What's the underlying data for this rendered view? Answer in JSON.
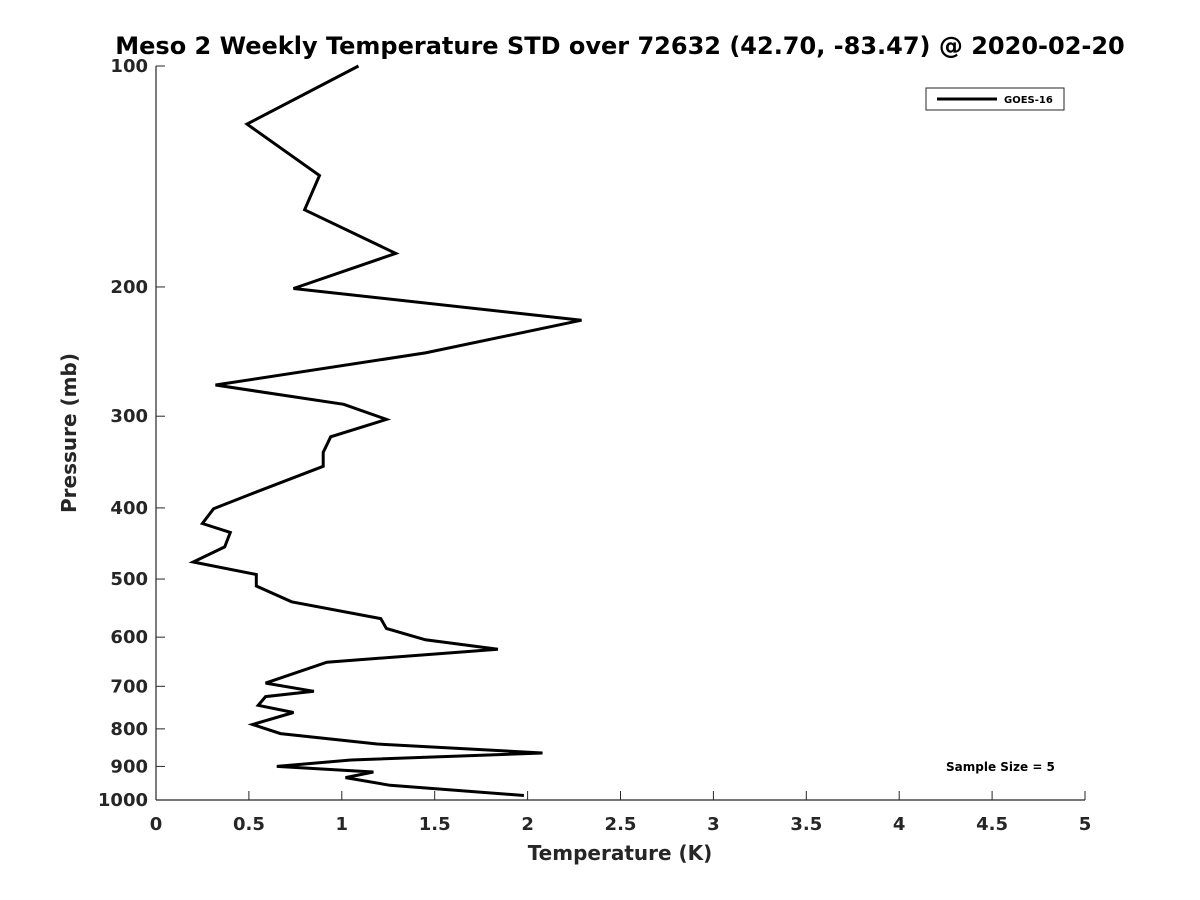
{
  "chart_data": {
    "type": "line",
    "title": "Meso 2 Weekly Temperature STD over 72632 (42.70, -83.47) @ 2020-02-20",
    "xlabel": "Temperature (K)",
    "ylabel": "Pressure (mb)",
    "xlim": [
      0,
      5
    ],
    "ylim": [
      100,
      1000
    ],
    "yscale": "log",
    "y_reversed": true,
    "grid": false,
    "legend_position": "top-right",
    "x_ticks": [
      {
        "value": 0,
        "label": "0"
      },
      {
        "value": 0.5,
        "label": "0.5"
      },
      {
        "value": 1,
        "label": "1"
      },
      {
        "value": 1.5,
        "label": "1.5"
      },
      {
        "value": 2,
        "label": "2"
      },
      {
        "value": 2.5,
        "label": "2.5"
      },
      {
        "value": 3,
        "label": "3"
      },
      {
        "value": 3.5,
        "label": "3.5"
      },
      {
        "value": 4,
        "label": "4"
      },
      {
        "value": 4.5,
        "label": "4.5"
      },
      {
        "value": 5,
        "label": "5"
      }
    ],
    "y_ticks": [
      {
        "value": 100,
        "label": "100"
      },
      {
        "value": 200,
        "label": "200"
      },
      {
        "value": 300,
        "label": "300"
      },
      {
        "value": 400,
        "label": "400"
      },
      {
        "value": 500,
        "label": "500"
      },
      {
        "value": 600,
        "label": "600"
      },
      {
        "value": 700,
        "label": "700"
      },
      {
        "value": 800,
        "label": "800"
      },
      {
        "value": 900,
        "label": "900"
      },
      {
        "value": 1000,
        "label": "1000"
      }
    ],
    "series": [
      {
        "name": "GOES-16",
        "color": "#000000",
        "x": [
          1.09,
          0.49,
          0.88,
          0.8,
          1.29,
          0.74,
          2.29,
          1.45,
          0.32,
          1.01,
          1.24,
          0.94,
          0.9,
          0.9,
          0.51,
          0.31,
          0.25,
          0.4,
          0.37,
          0.2,
          0.54,
          0.54,
          0.73,
          1.21,
          1.24,
          1.45,
          1.84,
          0.92,
          0.59,
          0.85,
          0.59,
          0.55,
          0.74,
          0.52,
          0.67,
          1.19,
          2.08,
          1.05,
          0.65,
          1.17,
          1.02,
          1.26,
          1.98
        ],
        "y": [
          100,
          120,
          141,
          157,
          180,
          201,
          222,
          246,
          272,
          289,
          303,
          320,
          336,
          351,
          383,
          401,
          420,
          432,
          452,
          474,
          493,
          511,
          537,
          566,
          584,
          605,
          623,
          649,
          693,
          711,
          723,
          743,
          760,
          789,
          812,
          839,
          863,
          882,
          900,
          916,
          932,
          955,
          986
        ]
      }
    ],
    "annotation": "Sample Size = 5"
  }
}
